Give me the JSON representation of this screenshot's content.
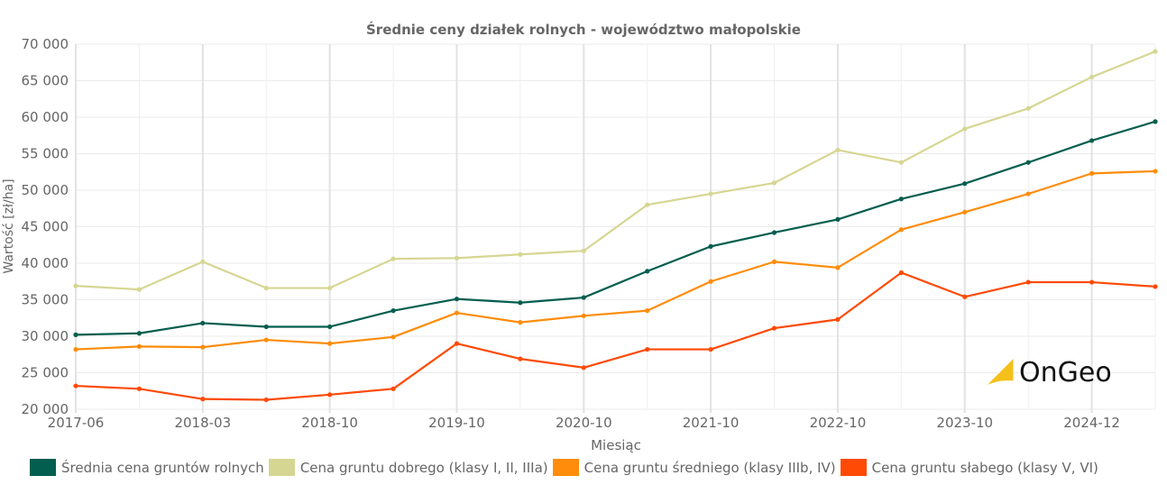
{
  "chart_data": {
    "type": "line",
    "title": "Średnie ceny działek rolnych - województwo małopolskie",
    "xlabel": "Miesiąc",
    "ylabel": "Wartość [zł/ha]",
    "ylim": [
      20000,
      70000
    ],
    "yticks": [
      "20 000",
      "25 000",
      "30 000",
      "35 000",
      "40 000",
      "45 000",
      "50 000",
      "55 000",
      "60 000",
      "65 000",
      "70 000"
    ],
    "xtick_labels": [
      "2017-06",
      "2018-03",
      "2018-10",
      "2019-10",
      "2020-10",
      "2021-10",
      "2022-10",
      "2023-10",
      "2024-12"
    ],
    "grid": true,
    "legend_position": "bottom",
    "n_points": 18,
    "series": [
      {
        "name": "Średnia cena gruntów rolnych",
        "color": "#035e4f",
        "values": [
          30200,
          30400,
          31800,
          31300,
          31300,
          33500,
          35100,
          34600,
          35300,
          38900,
          42300,
          44200,
          46000,
          48800,
          50900,
          53800,
          56800,
          59400
        ]
      },
      {
        "name": "Cena gruntu dobrego (klasy I, II, IIIa)",
        "color": "#d6d693",
        "values": [
          36900,
          36400,
          40200,
          36600,
          36600,
          40600,
          40700,
          41200,
          41700,
          48000,
          49500,
          51000,
          55500,
          53800,
          58400,
          61200,
          65500,
          69000
        ]
      },
      {
        "name": "Cena gruntu średniego (klasy IIIb, IV)",
        "color": "#ff8c0a",
        "values": [
          28200,
          28600,
          28500,
          29500,
          29000,
          29900,
          33200,
          31900,
          32800,
          33500,
          37500,
          40200,
          39400,
          44600,
          47000,
          49500,
          52300,
          52600
        ]
      },
      {
        "name": "Cena gruntu słabego (klasy V, VI)",
        "color": "#ff4a05",
        "values": [
          23200,
          22800,
          21400,
          21300,
          22000,
          22800,
          29000,
          26900,
          25700,
          28200,
          28200,
          31100,
          32300,
          38700,
          35400,
          37400,
          37400,
          36800
        ]
      }
    ]
  },
  "logo": {
    "text": "OnGeo"
  }
}
